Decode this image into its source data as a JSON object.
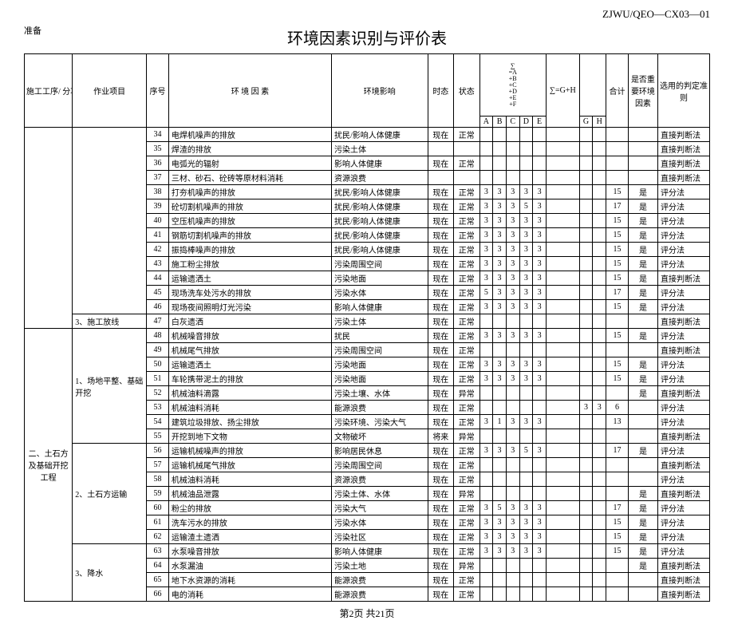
{
  "doc_code": "ZJWU/QEO—CX03—01",
  "prep": "准备",
  "title": "环境因素识别与评价表",
  "footer": "第2页 共21页",
  "headers": {
    "proc": "施工工序/\n分项工程",
    "task": "作业项目",
    "seq": "序号",
    "factor": "环 境 因 素",
    "impact": "环境影响",
    "tense": "时态",
    "state": "状态",
    "sigma": "∑\n=A\n+B\n+C\n+D\n+E\n+F",
    "sumGH": "∑=G+H",
    "total": "合计",
    "key": "是否重要环境因素",
    "method": "选用的判定准则"
  },
  "abc": [
    "A",
    "B",
    "C",
    "D",
    "E",
    "G",
    "H"
  ],
  "proc": {
    "p1_task3": "3、施工放线",
    "p2": "二、土石方及基础开挖工程",
    "p2_task1": "1、场地平整、基础开挖",
    "p2_task2": "2、土石方运输",
    "p2_task3": "3、降水"
  },
  "rows": [
    {
      "n": 34,
      "f": "电焊机噪声的排放",
      "i": "扰民/影响人体健康",
      "t": "现在",
      "s": "正常",
      "a": "",
      "b": "",
      "c": "",
      "d": "",
      "e": "",
      "g": "",
      "h": "",
      "sum": "",
      "k": "",
      "m": "直接判断法"
    },
    {
      "n": 35,
      "f": "焊渣的排放",
      "i": "污染土体",
      "t": "",
      "s": "",
      "a": "",
      "b": "",
      "c": "",
      "d": "",
      "e": "",
      "g": "",
      "h": "",
      "sum": "",
      "k": "",
      "m": "直接判断法"
    },
    {
      "n": 36,
      "f": "电弧光的辐射",
      "i": "影响人体健康",
      "t": "现在",
      "s": "正常",
      "a": "",
      "b": "",
      "c": "",
      "d": "",
      "e": "",
      "g": "",
      "h": "",
      "sum": "",
      "k": "",
      "m": "直接判断法"
    },
    {
      "n": 37,
      "f": "三材、砂石、砼砖等原材料消耗",
      "i": "资源浪费",
      "t": "",
      "s": "",
      "a": "",
      "b": "",
      "c": "",
      "d": "",
      "e": "",
      "g": "",
      "h": "",
      "sum": "",
      "k": "",
      "m": "直接判断法"
    },
    {
      "n": 38,
      "f": "打夯机噪声的排放",
      "i": "扰民/影响人体健康",
      "t": "现在",
      "s": "正常",
      "a": "3",
      "b": "3",
      "c": "3",
      "d": "3",
      "e": "3",
      "g": "",
      "h": "",
      "sum": "15",
      "k": "是",
      "m": "评分法"
    },
    {
      "n": 39,
      "f": "砼切割机噪声的排放",
      "i": "扰民/影响人体健康",
      "t": "现在",
      "s": "正常",
      "a": "3",
      "b": "3",
      "c": "3",
      "d": "5",
      "e": "3",
      "g": "",
      "h": "",
      "sum": "17",
      "k": "是",
      "m": "评分法"
    },
    {
      "n": 40,
      "f": "空压机噪声的排放",
      "i": "扰民/影响人体健康",
      "t": "现在",
      "s": "正常",
      "a": "3",
      "b": "3",
      "c": "3",
      "d": "3",
      "e": "3",
      "g": "",
      "h": "",
      "sum": "15",
      "k": "是",
      "m": "评分法"
    },
    {
      "n": 41,
      "f": "钢筋切割机噪声的排放",
      "i": "扰民/影响人体健康",
      "t": "现在",
      "s": "正常",
      "a": "3",
      "b": "3",
      "c": "3",
      "d": "3",
      "e": "3",
      "g": "",
      "h": "",
      "sum": "15",
      "k": "是",
      "m": "评分法"
    },
    {
      "n": 42,
      "f": "振捣棒噪声的排放",
      "i": "扰民/影响人体健康",
      "t": "现在",
      "s": "正常",
      "a": "3",
      "b": "3",
      "c": "3",
      "d": "3",
      "e": "3",
      "g": "",
      "h": "",
      "sum": "15",
      "k": "是",
      "m": "评分法"
    },
    {
      "n": 43,
      "f": "施工粉尘排放",
      "i": "污染周围空间",
      "t": "现在",
      "s": "正常",
      "a": "3",
      "b": "3",
      "c": "3",
      "d": "3",
      "e": "3",
      "g": "",
      "h": "",
      "sum": "15",
      "k": "是",
      "m": "评分法"
    },
    {
      "n": 44,
      "f": "运输遗洒土",
      "i": "污染地面",
      "t": "现在",
      "s": "正常",
      "a": "3",
      "b": "3",
      "c": "3",
      "d": "3",
      "e": "3",
      "g": "",
      "h": "",
      "sum": "15",
      "k": "是",
      "m": "直接判断法"
    },
    {
      "n": 45,
      "f": "现场洗车处污水的排放",
      "i": "污染水体",
      "t": "现在",
      "s": "正常",
      "a": "5",
      "b": "3",
      "c": "3",
      "d": "3",
      "e": "3",
      "g": "",
      "h": "",
      "sum": "17",
      "k": "是",
      "m": "评分法"
    },
    {
      "n": 46,
      "f": "现场夜间照明灯光污染",
      "i": "影响人体健康",
      "t": "现在",
      "s": "正常",
      "a": "3",
      "b": "3",
      "c": "3",
      "d": "3",
      "e": "3",
      "g": "",
      "h": "",
      "sum": "15",
      "k": "是",
      "m": "评分法"
    },
    {
      "n": 47,
      "f": "白灰遗洒",
      "i": "污染土体",
      "t": "现在",
      "s": "正常",
      "a": "",
      "b": "",
      "c": "",
      "d": "",
      "e": "",
      "g": "",
      "h": "",
      "sum": "",
      "k": "",
      "m": "直接判断法"
    },
    {
      "n": 48,
      "f": "机械噪音排放",
      "i": "扰民",
      "t": "现在",
      "s": "正常",
      "a": "3",
      "b": "3",
      "c": "3",
      "d": "3",
      "e": "3",
      "g": "",
      "h": "",
      "sum": "15",
      "k": "是",
      "m": "评分法"
    },
    {
      "n": 49,
      "f": "机械尾气排放",
      "i": "污染周围空间",
      "t": "现在",
      "s": "正常",
      "a": "",
      "b": "",
      "c": "",
      "d": "",
      "e": "",
      "g": "",
      "h": "",
      "sum": "",
      "k": "",
      "m": "直接判断法"
    },
    {
      "n": 50,
      "f": "运输遗洒土",
      "i": "污染地面",
      "t": "现在",
      "s": "正常",
      "a": "3",
      "b": "3",
      "c": "3",
      "d": "3",
      "e": "3",
      "g": "",
      "h": "",
      "sum": "15",
      "k": "是",
      "m": "评分法"
    },
    {
      "n": 51,
      "f": "车轮携带泥土的排放",
      "i": "污染地面",
      "t": "现在",
      "s": "正常",
      "a": "3",
      "b": "3",
      "c": "3",
      "d": "3",
      "e": "3",
      "g": "",
      "h": "",
      "sum": "15",
      "k": "是",
      "m": "评分法"
    },
    {
      "n": 52,
      "f": "机械油料滴露",
      "i": "污染土壤、水体",
      "t": "现在",
      "s": "异常",
      "a": "",
      "b": "",
      "c": "",
      "d": "",
      "e": "",
      "g": "",
      "h": "",
      "sum": "",
      "k": "是",
      "m": "直接判断法"
    },
    {
      "n": 53,
      "f": "机械油料消耗",
      "i": "能源浪费",
      "t": "现在",
      "s": "正常",
      "a": "",
      "b": "",
      "c": "",
      "d": "",
      "e": "",
      "g": "3",
      "h": "3",
      "sum": "6",
      "k": "",
      "m": "评分法"
    },
    {
      "n": 54,
      "f": "建筑垃圾排放、扬尘排放",
      "i": "污染环境、污染大气",
      "t": "现在",
      "s": "正常",
      "a": "3",
      "b": "1",
      "c": "3",
      "d": "3",
      "e": "3",
      "g": "",
      "h": "",
      "sum": "13",
      "k": "",
      "m": "评分法"
    },
    {
      "n": 55,
      "f": "开挖到地下文物",
      "i": "文物破坏",
      "t": "将来",
      "s": "异常",
      "a": "",
      "b": "",
      "c": "",
      "d": "",
      "e": "",
      "g": "",
      "h": "",
      "sum": "",
      "k": "",
      "m": "直接判断法"
    },
    {
      "n": 56,
      "f": "运输机械噪声的排放",
      "i": "影响居民休息",
      "t": "现在",
      "s": "正常",
      "a": "3",
      "b": "3",
      "c": "3",
      "d": "5",
      "e": "3",
      "g": "",
      "h": "",
      "sum": "17",
      "k": "是",
      "m": "评分法"
    },
    {
      "n": 57,
      "f": "运输机械尾气排放",
      "i": "污染周围空间",
      "t": "现在",
      "s": "正常",
      "a": "",
      "b": "",
      "c": "",
      "d": "",
      "e": "",
      "g": "",
      "h": "",
      "sum": "",
      "k": "",
      "m": "直接判断法"
    },
    {
      "n": 58,
      "f": "机械油料消耗",
      "i": "资源浪费",
      "t": "现在",
      "s": "正常",
      "a": "",
      "b": "",
      "c": "",
      "d": "",
      "e": "",
      "g": "",
      "h": "",
      "sum": "",
      "k": "",
      "m": "评分法"
    },
    {
      "n": 59,
      "f": "机械油品泄露",
      "i": "污染土体、水体",
      "t": "现在",
      "s": "异常",
      "a": "",
      "b": "",
      "c": "",
      "d": "",
      "e": "",
      "g": "",
      "h": "",
      "sum": "",
      "k": "是",
      "m": "直接判断法"
    },
    {
      "n": 60,
      "f": "粉尘的排放",
      "i": "污染大气",
      "t": "现在",
      "s": "正常",
      "a": "3",
      "b": "5",
      "c": "3",
      "d": "3",
      "e": "3",
      "g": "",
      "h": "",
      "sum": "17",
      "k": "是",
      "m": "评分法"
    },
    {
      "n": 61,
      "f": "洗车污水的排放",
      "i": "污染水体",
      "t": "现在",
      "s": "正常",
      "a": "3",
      "b": "3",
      "c": "3",
      "d": "3",
      "e": "3",
      "g": "",
      "h": "",
      "sum": "15",
      "k": "是",
      "m": "评分法"
    },
    {
      "n": 62,
      "f": "运输渣土遗洒",
      "i": "污染社区",
      "t": "现在",
      "s": "正常",
      "a": "3",
      "b": "3",
      "c": "3",
      "d": "3",
      "e": "3",
      "g": "",
      "h": "",
      "sum": "15",
      "k": "是",
      "m": "评分法"
    },
    {
      "n": 63,
      "f": "水泵噪音排放",
      "i": "影响人体健康",
      "t": "现在",
      "s": "正常",
      "a": "3",
      "b": "3",
      "c": "3",
      "d": "3",
      "e": "3",
      "g": "",
      "h": "",
      "sum": "15",
      "k": "是",
      "m": "评分法"
    },
    {
      "n": 64,
      "f": "水泵漏油",
      "i": "污染土地",
      "t": "现在",
      "s": "异常",
      "a": "",
      "b": "",
      "c": "",
      "d": "",
      "e": "",
      "g": "",
      "h": "",
      "sum": "",
      "k": "是",
      "m": "直接判断法"
    },
    {
      "n": 65,
      "f": "地下水资源的消耗",
      "i": "能源浪费",
      "t": "现在",
      "s": "正常",
      "a": "",
      "b": "",
      "c": "",
      "d": "",
      "e": "",
      "g": "",
      "h": "",
      "sum": "",
      "k": "",
      "m": "直接判断法"
    },
    {
      "n": 66,
      "f": "电的消耗",
      "i": "能源浪费",
      "t": "现在",
      "s": "正常",
      "a": "",
      "b": "",
      "c": "",
      "d": "",
      "e": "",
      "g": "",
      "h": "",
      "sum": "",
      "k": "",
      "m": "直接判断法"
    }
  ]
}
